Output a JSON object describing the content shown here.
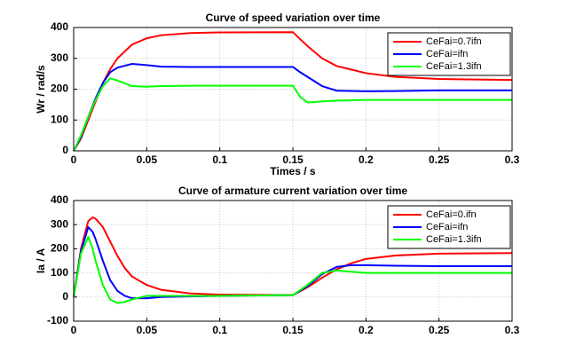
{
  "chart_data": [
    {
      "type": "line",
      "title": "Curve of speed variation over time",
      "x_label": "Times / s",
      "y_label": "Wr / rad/s",
      "x": [
        0,
        0.005,
        0.01,
        0.015,
        0.02,
        0.025,
        0.03,
        0.04,
        0.05,
        0.06,
        0.08,
        0.1,
        0.15,
        0.155,
        0.16,
        0.17,
        0.18,
        0.2,
        0.22,
        0.25,
        0.3
      ],
      "series": [
        {
          "name": "CeFai=0.7ifn",
          "color": "#ff0000",
          "values": [
            0,
            40,
            100,
            160,
            220,
            265,
            300,
            345,
            365,
            375,
            382,
            384,
            385,
            362,
            340,
            300,
            275,
            252,
            240,
            233,
            230
          ]
        },
        {
          "name": "CeFai=ifn",
          "color": "#0000ff",
          "values": [
            0,
            45,
            110,
            170,
            220,
            255,
            270,
            282,
            278,
            273,
            272,
            272,
            272,
            255,
            240,
            210,
            195,
            193,
            194,
            196,
            196
          ]
        },
        {
          "name": "CeFai=1.3ifn",
          "color": "#00ff00",
          "values": [
            0,
            50,
            110,
            165,
            210,
            235,
            228,
            210,
            208,
            210,
            211,
            211,
            211,
            175,
            157,
            160,
            163,
            165,
            165,
            165,
            165
          ]
        }
      ],
      "xlim": [
        0,
        0.3
      ],
      "xticks": [
        0,
        0.05,
        0.1,
        0.15,
        0.2,
        0.25,
        0.3
      ],
      "ylim": [
        0,
        400
      ],
      "yticks": [
        0,
        100,
        200,
        300,
        400
      ],
      "grid": true,
      "legend": "upper-right"
    },
    {
      "type": "line",
      "title": "Curve of armature current variation over time",
      "y_label": "Ia / A",
      "x": [
        0,
        0.005,
        0.01,
        0.013,
        0.015,
        0.02,
        0.025,
        0.03,
        0.035,
        0.04,
        0.05,
        0.06,
        0.08,
        0.1,
        0.15,
        0.16,
        0.17,
        0.18,
        0.19,
        0.2,
        0.22,
        0.25,
        0.3
      ],
      "series": [
        {
          "name": "CeFai=0.ifn",
          "color": "#ff0000",
          "values": [
            0,
            200,
            315,
            330,
            325,
            290,
            230,
            170,
            120,
            85,
            50,
            30,
            15,
            10,
            8,
            40,
            80,
            115,
            140,
            158,
            172,
            180,
            182
          ]
        },
        {
          "name": "CeFai=ifn",
          "color": "#0000ff",
          "values": [
            0,
            190,
            290,
            270,
            240,
            150,
            70,
            25,
            5,
            -5,
            -5,
            0,
            3,
            5,
            8,
            45,
            95,
            125,
            132,
            132,
            130,
            128,
            128
          ]
        },
        {
          "name": "CeFai=1.3ifn",
          "color": "#00ff00",
          "values": [
            0,
            180,
            250,
            200,
            150,
            50,
            -10,
            -25,
            -20,
            -10,
            5,
            5,
            5,
            5,
            8,
            50,
            100,
            110,
            105,
            100,
            100,
            100,
            100
          ]
        }
      ],
      "xlim": [
        0,
        0.3
      ],
      "xticks": [
        0,
        0.05,
        0.1,
        0.15,
        0.2,
        0.25,
        0.3
      ],
      "ylim": [
        -100,
        400
      ],
      "yticks": [
        -100,
        0,
        100,
        200,
        300,
        400
      ],
      "grid": true,
      "legend": "upper-right"
    }
  ]
}
